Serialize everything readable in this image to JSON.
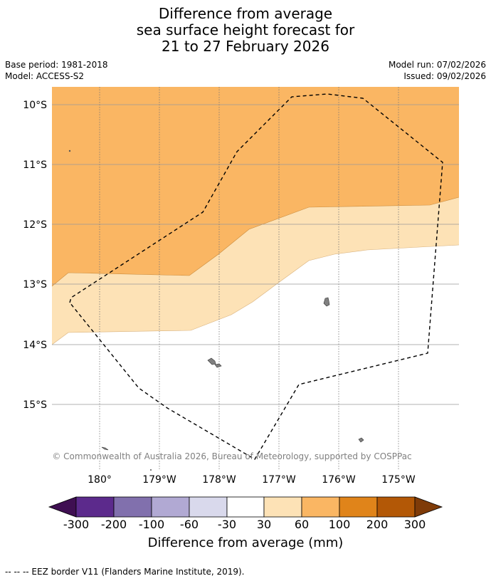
{
  "title": {
    "line1": "Difference from average",
    "line2": "sea surface height forecast for",
    "line3": "21 to 27 February 2026"
  },
  "meta": {
    "base_period": "Base period: 1981-2018",
    "model": "Model: ACCESS-S2",
    "model_run": "Model run: 07/02/2026",
    "issued": "Issued: 09/02/2026"
  },
  "map": {
    "lat_labels": [
      "10°S",
      "11°S",
      "12°S",
      "13°S",
      "14°S",
      "15°S"
    ],
    "lon_labels": [
      "180°",
      "179°W",
      "178°W",
      "177°W",
      "176°W",
      "175°W"
    ],
    "copyright": "© Commonwealth of Australia 2026, Bureau of Meteorology, supported by COSPPac",
    "colors": {
      "band_60_100": "#fab663",
      "band_30_60": "#fde2b6",
      "neutral": "#ffffff",
      "land": "#808080",
      "eez": "#000000"
    }
  },
  "colorbar": {
    "title": "Difference from average (mm)",
    "ticks": [
      "-300",
      "-200",
      "-100",
      "-60",
      "-30",
      "30",
      "60",
      "100",
      "200",
      "300"
    ],
    "colors": [
      "#3f0f52",
      "#5c2a8c",
      "#8170ad",
      "#b1a9d3",
      "#d9d9ec",
      "#ffffff",
      "#fde2b6",
      "#fab663",
      "#e0841a",
      "#b35806",
      "#7f3b08"
    ]
  },
  "footnote": "--  --  -- EEZ border V11 (Flanders Marine Institute, 2019)."
}
